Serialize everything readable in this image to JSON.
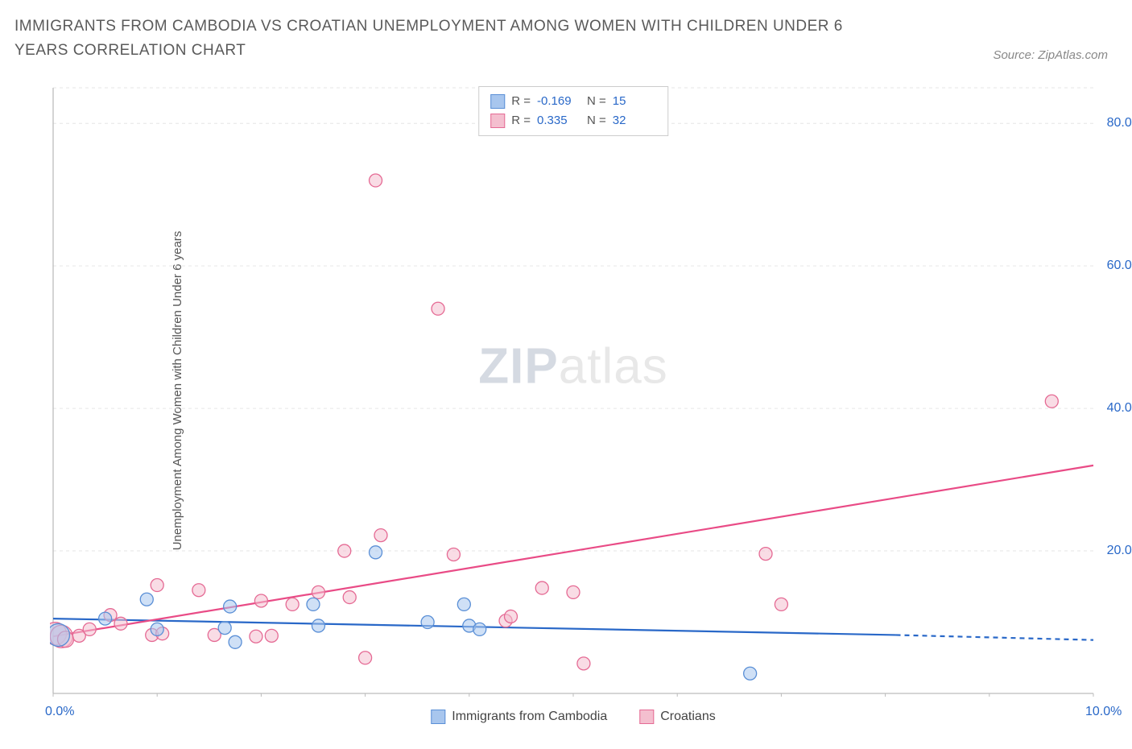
{
  "title": "IMMIGRANTS FROM CAMBODIA VS CROATIAN UNEMPLOYMENT AMONG WOMEN WITH CHILDREN UNDER 6 YEARS CORRELATION CHART",
  "source": "Source: ZipAtlas.com",
  "watermark_a": "ZIP",
  "watermark_b": "atlas",
  "ylabel": "Unemployment Among Women with Children Under 6 years",
  "chart": {
    "type": "scatter",
    "xlim": [
      0,
      10
    ],
    "ylim": [
      0,
      85
    ],
    "xticks": [
      0,
      1,
      2,
      3,
      4,
      5,
      6,
      7,
      8,
      9,
      10
    ],
    "xtick_labels": {
      "0": "0.0%",
      "10": "10.0%"
    },
    "yticks": [
      20,
      40,
      60,
      80
    ],
    "ytick_labels": {
      "20": "20.0%",
      "40": "40.0%",
      "60": "60.0%",
      "80": "80.0%"
    },
    "grid_color": "#e6e6e6",
    "axis_color": "#bcbcbc",
    "background": "#ffffff",
    "tick_label_color": "#2968c8",
    "series": [
      {
        "id": "cambodia",
        "label": "Immigrants from Cambodia",
        "fill": "#a8c6ee",
        "stroke": "#5a8fd6",
        "fill_opacity": 0.55,
        "r_value": "-0.169",
        "n_value": "15",
        "trend": {
          "x1": 0,
          "y1": 10.5,
          "x2": 8.1,
          "y2": 8.2,
          "dash_after_x": 8.1,
          "x2_dash": 10,
          "y2_dash": 7.5,
          "color": "#2968c8",
          "width": 2.2
        },
        "points": [
          {
            "x": 0.05,
            "y": 8.2,
            "r": 14
          },
          {
            "x": 0.5,
            "y": 10.5,
            "r": 8
          },
          {
            "x": 0.9,
            "y": 13.2,
            "r": 8
          },
          {
            "x": 1.0,
            "y": 9.0,
            "r": 8
          },
          {
            "x": 1.65,
            "y": 9.2,
            "r": 8
          },
          {
            "x": 1.7,
            "y": 12.2,
            "r": 8
          },
          {
            "x": 1.75,
            "y": 7.2,
            "r": 8
          },
          {
            "x": 2.5,
            "y": 12.5,
            "r": 8
          },
          {
            "x": 2.55,
            "y": 9.5,
            "r": 8
          },
          {
            "x": 3.1,
            "y": 19.8,
            "r": 8
          },
          {
            "x": 3.6,
            "y": 10.0,
            "r": 8
          },
          {
            "x": 3.95,
            "y": 12.5,
            "r": 8
          },
          {
            "x": 4.0,
            "y": 9.5,
            "r": 8
          },
          {
            "x": 4.1,
            "y": 9.0,
            "r": 8
          },
          {
            "x": 6.7,
            "y": 2.8,
            "r": 8
          }
        ]
      },
      {
        "id": "croatians",
        "label": "Croatians",
        "fill": "#f4bfcf",
        "stroke": "#e56a94",
        "fill_opacity": 0.55,
        "r_value": "0.335",
        "n_value": "32",
        "trend": {
          "x1": 0,
          "y1": 8.0,
          "x2": 10,
          "y2": 32.0,
          "color": "#e94b86",
          "width": 2.2
        },
        "points": [
          {
            "x": 0.02,
            "y": 8.4,
            "r": 14
          },
          {
            "x": 0.08,
            "y": 8.0,
            "r": 14
          },
          {
            "x": 0.12,
            "y": 7.6,
            "r": 10
          },
          {
            "x": 0.25,
            "y": 8.1,
            "r": 8
          },
          {
            "x": 0.35,
            "y": 9.0,
            "r": 8
          },
          {
            "x": 0.55,
            "y": 11.0,
            "r": 8
          },
          {
            "x": 0.65,
            "y": 9.8,
            "r": 8
          },
          {
            "x": 0.95,
            "y": 8.2,
            "r": 8
          },
          {
            "x": 1.0,
            "y": 15.2,
            "r": 8
          },
          {
            "x": 1.05,
            "y": 8.4,
            "r": 8
          },
          {
            "x": 1.4,
            "y": 14.5,
            "r": 8
          },
          {
            "x": 1.55,
            "y": 8.2,
            "r": 8
          },
          {
            "x": 1.95,
            "y": 8.0,
            "r": 8
          },
          {
            "x": 2.0,
            "y": 13.0,
            "r": 8
          },
          {
            "x": 2.1,
            "y": 8.1,
            "r": 8
          },
          {
            "x": 2.3,
            "y": 12.5,
            "r": 8
          },
          {
            "x": 2.55,
            "y": 14.2,
            "r": 8
          },
          {
            "x": 2.8,
            "y": 20.0,
            "r": 8
          },
          {
            "x": 2.85,
            "y": 13.5,
            "r": 8
          },
          {
            "x": 3.0,
            "y": 5.0,
            "r": 8
          },
          {
            "x": 3.1,
            "y": 72.0,
            "r": 8
          },
          {
            "x": 3.15,
            "y": 22.2,
            "r": 8
          },
          {
            "x": 3.7,
            "y": 54.0,
            "r": 8
          },
          {
            "x": 3.85,
            "y": 19.5,
            "r": 8
          },
          {
            "x": 4.35,
            "y": 10.2,
            "r": 8
          },
          {
            "x": 4.4,
            "y": 10.8,
            "r": 8
          },
          {
            "x": 4.7,
            "y": 14.8,
            "r": 8
          },
          {
            "x": 5.0,
            "y": 14.2,
            "r": 8
          },
          {
            "x": 5.1,
            "y": 4.2,
            "r": 8
          },
          {
            "x": 6.85,
            "y": 19.6,
            "r": 8
          },
          {
            "x": 7.0,
            "y": 12.5,
            "r": 8
          },
          {
            "x": 9.6,
            "y": 41.0,
            "r": 8
          }
        ]
      }
    ]
  },
  "legend_top": {
    "r_label": "R =",
    "n_label": "N ="
  },
  "legend_bottom_labels": {
    "cambodia": "Immigrants from Cambodia",
    "croatians": "Croatians"
  }
}
